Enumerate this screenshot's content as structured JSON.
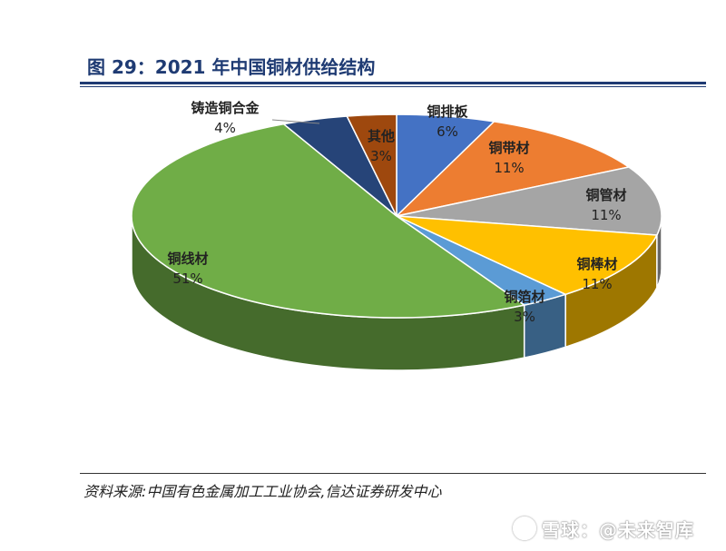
{
  "header": {
    "title": "图 29：2021 年中国铜材供给结构"
  },
  "footer": {
    "source": "资料来源:中国有色金属加工工业协会,信达证券研发中心",
    "watermark": "雪球：@未来智库"
  },
  "chart_data": {
    "type": "pie",
    "categories": [
      "铜排板",
      "铜带材",
      "铜管材",
      "铜棒材",
      "铜箔材",
      "铜线材",
      "铸造铜合金",
      "其他"
    ],
    "values": [
      6,
      11,
      11,
      11,
      3,
      51,
      4,
      3
    ],
    "labels": [
      "6%",
      "11%",
      "11%",
      "11%",
      "3%",
      "51%",
      "4%",
      "3%"
    ],
    "colors": [
      "#4472c4",
      "#ed7d31",
      "#a5a5a5",
      "#ffc000",
      "#5b9bd5",
      "#70ad47",
      "#264478",
      "#9e480e"
    ]
  }
}
